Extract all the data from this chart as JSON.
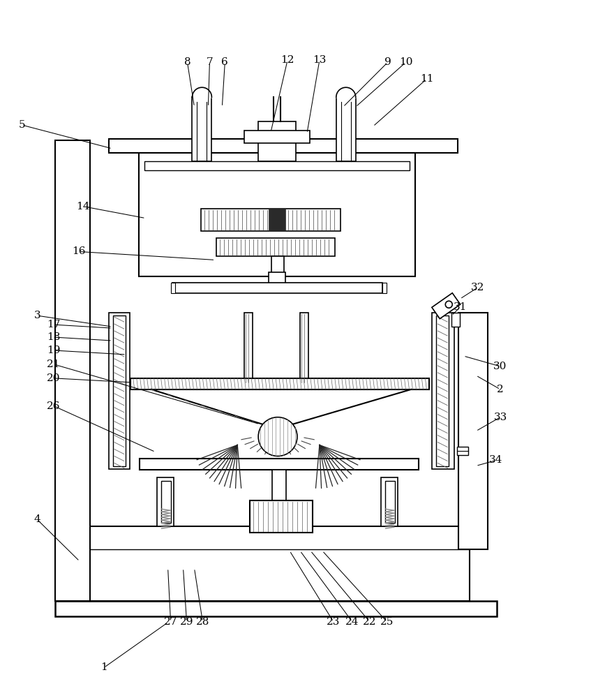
{
  "bg": "#ffffff",
  "lc": "#000000",
  "fig_w": 8.47,
  "fig_h": 10.0,
  "labels": [
    [
      "1",
      148,
      958,
      240,
      893
    ],
    [
      "2",
      718,
      558,
      683,
      538
    ],
    [
      "3",
      52,
      452,
      160,
      468
    ],
    [
      "4",
      52,
      745,
      113,
      805
    ],
    [
      "5",
      30,
      178,
      160,
      212
    ],
    [
      "8",
      268,
      88,
      278,
      152
    ],
    [
      "7",
      300,
      88,
      298,
      152
    ],
    [
      "6",
      322,
      88,
      318,
      152
    ],
    [
      "12",
      412,
      85,
      388,
      188
    ],
    [
      "13",
      458,
      85,
      440,
      190
    ],
    [
      "9",
      556,
      88,
      492,
      152
    ],
    [
      "10",
      582,
      88,
      510,
      152
    ],
    [
      "11",
      612,
      112,
      535,
      180
    ],
    [
      "14",
      118,
      295,
      208,
      312
    ],
    [
      "16",
      112,
      360,
      308,
      372
    ],
    [
      "17",
      76,
      465,
      160,
      470
    ],
    [
      "18",
      76,
      483,
      160,
      488
    ],
    [
      "19",
      76,
      502,
      180,
      508
    ],
    [
      "21",
      76,
      522,
      372,
      608
    ],
    [
      "20",
      76,
      542,
      188,
      548
    ],
    [
      "26",
      76,
      582,
      222,
      648
    ],
    [
      "27",
      244,
      892,
      240,
      815
    ],
    [
      "29",
      267,
      892,
      262,
      815
    ],
    [
      "28",
      290,
      892,
      278,
      815
    ],
    [
      "23",
      478,
      892,
      415,
      790
    ],
    [
      "24",
      505,
      892,
      430,
      790
    ],
    [
      "22",
      530,
      892,
      445,
      790
    ],
    [
      "25",
      555,
      892,
      462,
      790
    ],
    [
      "30",
      718,
      525,
      665,
      510
    ],
    [
      "31",
      660,
      440,
      648,
      452
    ],
    [
      "32",
      685,
      412,
      660,
      428
    ],
    [
      "33",
      718,
      598,
      683,
      618
    ],
    [
      "34",
      712,
      660,
      683,
      668
    ]
  ]
}
